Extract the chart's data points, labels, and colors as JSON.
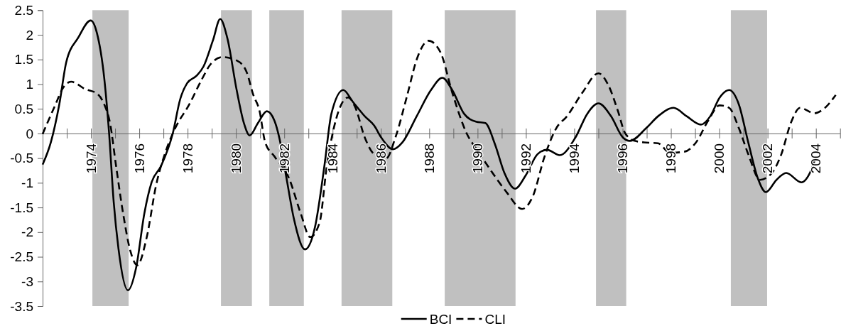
{
  "chart_data": {
    "type": "line",
    "xlim": [
      1972,
      2005
    ],
    "ylim": [
      -3.5,
      2.5
    ],
    "xticks": [
      {
        "value": 1973,
        "label": null
      },
      1974,
      {
        "value": 1975,
        "label": null
      },
      1976,
      {
        "value": 1977,
        "label": null
      },
      1978,
      {
        "value": 1979,
        "label": null
      },
      1980,
      {
        "value": 1981,
        "label": null
      },
      1982,
      {
        "value": 1983,
        "label": null
      },
      1984,
      {
        "value": 1985,
        "label": null
      },
      1986,
      {
        "value": 1987,
        "label": null
      },
      1988,
      {
        "value": 1989,
        "label": null
      },
      1990,
      {
        "value": 1991,
        "label": null
      },
      1992,
      {
        "value": 1993,
        "label": null
      },
      1994,
      {
        "value": 1995,
        "label": null
      },
      1996,
      {
        "value": 1997,
        "label": null
      },
      1998,
      {
        "value": 1999,
        "label": null
      },
      2000,
      {
        "value": 2001,
        "label": null
      },
      2002,
      {
        "value": 2003,
        "label": null
      },
      2004,
      {
        "value": 2005,
        "label": null
      }
    ],
    "yticks": [
      2.5,
      2,
      1.5,
      1,
      0.5,
      0,
      -0.5,
      -1,
      -1.5,
      -2,
      -2.5,
      -3,
      -3.5
    ],
    "legend": "bottom",
    "bands": [
      {
        "axis": "x",
        "from": 1974.06,
        "to": 1975.56,
        "color": "#c0c0c0"
      },
      {
        "axis": "x",
        "from": 1979.38,
        "to": 1980.66,
        "color": "#c0c0c0"
      },
      {
        "axis": "x",
        "from": 1981.38,
        "to": 1982.81,
        "color": "#c0c0c0"
      },
      {
        "axis": "x",
        "from": 1984.37,
        "to": 1986.47,
        "color": "#c0c0c0"
      },
      {
        "axis": "x",
        "from": 1988.64,
        "to": 1991.57,
        "color": "#c0c0c0"
      },
      {
        "axis": "x",
        "from": 1994.9,
        "to": 1996.15,
        "color": "#c0c0c0"
      },
      {
        "axis": "x",
        "from": 2000.48,
        "to": 2001.98,
        "color": "#c0c0c0"
      }
    ],
    "series": [
      {
        "name": "BCI",
        "color": "#000000",
        "line_style": "solid",
        "x": [
          1972.0,
          1972.34,
          1972.69,
          1972.98,
          1973.47,
          1973.99,
          1974.25,
          1974.55,
          1974.75,
          1974.94,
          1975.14,
          1975.53,
          1975.87,
          1976.21,
          1976.51,
          1976.9,
          1977.39,
          1977.69,
          1977.98,
          1978.37,
          1978.66,
          1979.05,
          1979.35,
          1979.64,
          1980.03,
          1980.33,
          1980.57,
          1980.91,
          1981.28,
          1981.6,
          1981.8,
          1982.09,
          1982.39,
          1982.86,
          1983.27,
          1983.66,
          1983.95,
          1984.44,
          1984.84,
          1985.33,
          1985.72,
          1986.01,
          1986.5,
          1986.89,
          1987.48,
          1988.07,
          1988.54,
          1988.95,
          1989.44,
          1989.93,
          1990.32,
          1990.72,
          1991.11,
          1991.55,
          1991.99,
          1992.48,
          1992.87,
          1993.4,
          1994.05,
          1994.54,
          1995.0,
          1995.52,
          1996.01,
          1996.3,
          1996.98,
          1997.47,
          1998.11,
          1998.65,
          1999.24,
          1999.63,
          2000.02,
          2000.41,
          2000.81,
          2001.2,
          2001.59,
          2001.93,
          2002.37,
          2002.77,
          2003.4,
          2003.75,
          2003.94
        ],
        "values": [
          -0.63,
          -0.18,
          0.59,
          1.45,
          1.94,
          2.29,
          2.03,
          1.12,
          0.01,
          -1.38,
          -2.34,
          -3.18,
          -2.72,
          -1.62,
          -0.99,
          -0.66,
          0.01,
          0.69,
          1.02,
          1.17,
          1.36,
          1.89,
          2.32,
          1.94,
          0.88,
          0.21,
          -0.04,
          0.21,
          0.45,
          0.25,
          -0.1,
          -0.9,
          -1.71,
          -2.35,
          -1.9,
          -0.66,
          0.4,
          0.88,
          0.64,
          0.35,
          0.16,
          -0.08,
          -0.32,
          -0.18,
          0.35,
          0.88,
          1.13,
          0.88,
          0.4,
          0.24,
          0.21,
          -0.22,
          -0.8,
          -1.12,
          -0.85,
          -0.42,
          -0.33,
          -0.44,
          -0.08,
          0.4,
          0.61,
          0.35,
          -0.08,
          -0.15,
          0.11,
          0.35,
          0.52,
          0.35,
          0.18,
          0.35,
          0.73,
          0.88,
          0.59,
          -0.18,
          -0.9,
          -1.19,
          -0.94,
          -0.8,
          -0.99,
          -0.8,
          -0.56
        ]
      },
      {
        "name": "CLI",
        "color": "#000000",
        "line_style": "dashed",
        "x": [
          1972.0,
          1972.49,
          1972.88,
          1973.18,
          1973.76,
          1974.25,
          1974.55,
          1974.79,
          1975.04,
          1975.33,
          1975.63,
          1975.92,
          1976.31,
          1976.7,
          1977.09,
          1977.49,
          1978.07,
          1978.56,
          1978.96,
          1979.45,
          1980.03,
          1980.43,
          1980.72,
          1980.97,
          1981.21,
          1981.6,
          1982.19,
          1982.68,
          1983.07,
          1983.46,
          1983.76,
          1984.15,
          1984.64,
          1984.93,
          1985.33,
          1985.72,
          1986.21,
          1986.6,
          1987.09,
          1987.48,
          1987.97,
          1988.46,
          1988.95,
          1989.54,
          1990.03,
          1990.62,
          1991.2,
          1991.84,
          1992.28,
          1992.77,
          1993.26,
          1993.7,
          1994.34,
          1995.0,
          1995.42,
          1995.81,
          1996.1,
          1996.5,
          1996.89,
          1997.47,
          1997.96,
          1998.55,
          1999.04,
          1999.53,
          2000.02,
          2000.41,
          2000.81,
          2001.2,
          2001.69,
          2002.18,
          2002.57,
          2002.96,
          2003.35,
          2003.94,
          2004.33,
          2004.82
        ],
        "values": [
          -0.01,
          0.54,
          0.95,
          1.05,
          0.9,
          0.81,
          0.59,
          0.21,
          -0.66,
          -1.62,
          -2.38,
          -2.67,
          -2.1,
          -1.04,
          -0.37,
          0.11,
          0.59,
          1.07,
          1.41,
          1.55,
          1.48,
          1.26,
          0.78,
          0.47,
          -0.18,
          -0.47,
          -0.9,
          -1.62,
          -2.1,
          -1.81,
          -0.66,
          0.3,
          0.73,
          0.54,
          -0.08,
          -0.42,
          -0.51,
          -0.08,
          0.78,
          1.5,
          1.88,
          1.65,
          0.83,
          0.01,
          -0.37,
          -0.8,
          -1.19,
          -1.53,
          -1.28,
          -0.47,
          0.11,
          0.35,
          0.83,
          1.22,
          0.97,
          0.45,
          0.01,
          -0.15,
          -0.18,
          -0.2,
          -0.39,
          -0.37,
          -0.18,
          0.25,
          0.57,
          0.52,
          0.11,
          -0.42,
          -0.94,
          -0.8,
          -0.42,
          0.21,
          0.52,
          0.41,
          0.5,
          0.78
        ]
      }
    ]
  }
}
